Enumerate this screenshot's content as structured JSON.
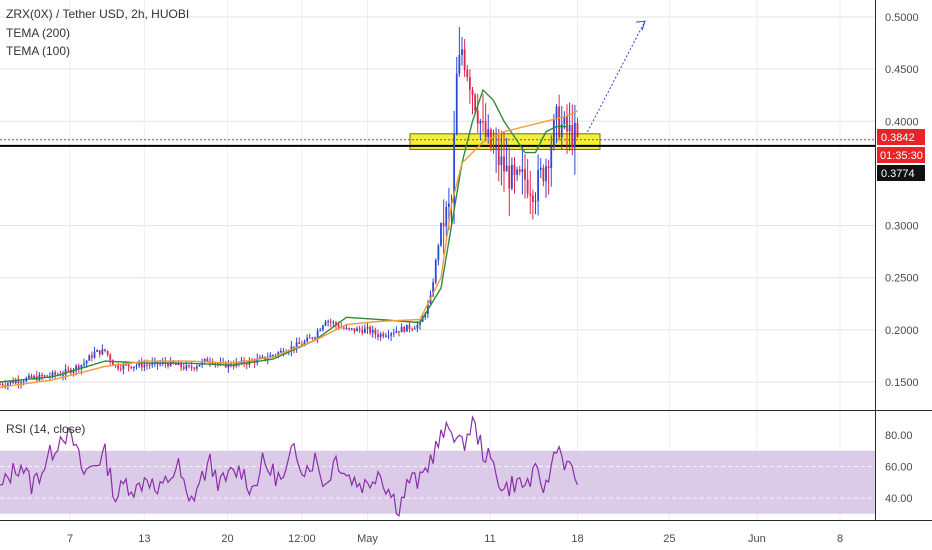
{
  "legend": {
    "title": "ZRX(0X) / Tether USD, 2h, HUOBI",
    "ind1": "TEMA (200)",
    "ind2": "TEMA (100)",
    "rsi": "RSI (14, close)"
  },
  "badges": {
    "last_price": "0.3842",
    "countdown": "01:35:30",
    "level": "0.3774"
  },
  "colors": {
    "up": "#2a49d6",
    "down": "#e0244f",
    "tema200": "#2e8b3a",
    "tema100": "#f39a3b",
    "rsi": "#8a2fa8",
    "rsi_band": "#d7c4e6",
    "zone": "#f4ef3c",
    "red_badge": "#e8242b",
    "black_badge": "#111111",
    "projection": "#2a49d6"
  },
  "chart_data": [
    {
      "type": "candlestick",
      "title": "ZRX(0X) / Tether USD, 2h, HUOBI",
      "ylim": [
        0.14,
        0.5
      ],
      "y_ticks": [
        "0.5000",
        "0.4500",
        "0.4000",
        "0.3000",
        "0.2500",
        "0.2000",
        "0.1500"
      ],
      "x_ticks": [
        "7",
        "13",
        "20",
        "12:00",
        "May",
        "11",
        "18",
        "25",
        "Jun",
        "8"
      ],
      "price_path": [
        [
          0,
          0.148
        ],
        [
          2,
          0.152
        ],
        [
          4,
          0.155
        ],
        [
          6,
          0.158
        ],
        [
          8,
          0.168
        ],
        [
          9,
          0.178
        ],
        [
          10,
          0.18
        ],
        [
          11,
          0.165
        ],
        [
          13,
          0.166
        ],
        [
          16,
          0.168
        ],
        [
          18,
          0.163
        ],
        [
          20,
          0.172
        ],
        [
          21,
          0.166
        ],
        [
          23,
          0.168
        ],
        [
          25,
          0.172
        ],
        [
          27,
          0.18
        ],
        [
          29,
          0.188
        ],
        [
          30,
          0.195
        ],
        [
          31,
          0.21
        ],
        [
          32,
          0.205
        ],
        [
          33,
          0.2
        ],
        [
          35,
          0.2
        ],
        [
          36,
          0.195
        ],
        [
          38,
          0.2
        ],
        [
          40,
          0.205
        ],
        [
          41,
          0.23
        ],
        [
          42,
          0.3
        ],
        [
          43,
          0.32
        ],
        [
          43.5,
          0.44
        ],
        [
          44,
          0.47
        ],
        [
          45,
          0.43
        ],
        [
          46,
          0.39
        ],
        [
          47,
          0.37
        ],
        [
          48,
          0.355
        ],
        [
          49,
          0.34
        ],
        [
          50,
          0.345
        ],
        [
          51,
          0.335
        ],
        [
          52,
          0.36
        ],
        [
          53,
          0.4
        ],
        [
          54,
          0.39
        ],
        [
          55,
          0.384
        ]
      ],
      "tema200": [
        [
          0,
          0.15
        ],
        [
          5,
          0.155
        ],
        [
          10,
          0.17
        ],
        [
          14,
          0.168
        ],
        [
          18,
          0.168
        ],
        [
          22,
          0.166
        ],
        [
          26,
          0.172
        ],
        [
          30,
          0.19
        ],
        [
          33,
          0.212
        ],
        [
          36,
          0.21
        ],
        [
          40,
          0.207
        ],
        [
          42,
          0.24
        ],
        [
          43,
          0.3
        ],
        [
          44,
          0.36
        ],
        [
          45,
          0.4
        ],
        [
          46,
          0.43
        ],
        [
          47,
          0.42
        ],
        [
          48,
          0.4
        ],
        [
          49,
          0.385
        ],
        [
          50,
          0.37
        ],
        [
          51,
          0.37
        ],
        [
          52,
          0.39
        ],
        [
          53,
          0.395
        ],
        [
          54,
          0.395
        ]
      ],
      "tema100": [
        [
          0,
          0.145
        ],
        [
          5,
          0.152
        ],
        [
          10,
          0.165
        ],
        [
          14,
          0.17
        ],
        [
          18,
          0.17
        ],
        [
          22,
          0.168
        ],
        [
          26,
          0.174
        ],
        [
          30,
          0.19
        ],
        [
          33,
          0.205
        ],
        [
          36,
          0.208
        ],
        [
          40,
          0.21
        ],
        [
          42,
          0.25
        ],
        [
          43,
          0.32
        ],
        [
          44,
          0.36
        ],
        [
          46,
          0.38
        ],
        [
          48,
          0.39
        ],
        [
          50,
          0.395
        ],
        [
          52,
          0.4
        ],
        [
          54,
          0.405
        ],
        [
          55,
          0.41
        ]
      ],
      "support_zone": [
        0.373,
        0.388
      ],
      "projection_target": 0.496
    },
    {
      "type": "line",
      "title": "RSI (14, close)",
      "ylim": [
        25,
        95
      ],
      "y_ticks": [
        "80.00",
        "60.00",
        "40.00"
      ],
      "band": [
        30,
        70
      ],
      "series": [
        [
          0,
          45
        ],
        [
          1,
          55
        ],
        [
          2,
          62
        ],
        [
          3,
          48
        ],
        [
          4,
          58
        ],
        [
          5,
          70
        ],
        [
          6,
          82
        ],
        [
          7,
          75
        ],
        [
          8,
          55
        ],
        [
          9,
          62
        ],
        [
          10,
          68
        ],
        [
          11,
          40
        ],
        [
          12,
          50
        ],
        [
          13,
          45
        ],
        [
          14,
          55
        ],
        [
          15,
          42
        ],
        [
          16,
          52
        ],
        [
          17,
          60
        ],
        [
          18,
          35
        ],
        [
          19,
          50
        ],
        [
          20,
          62
        ],
        [
          21,
          48
        ],
        [
          22,
          55
        ],
        [
          23,
          58
        ],
        [
          24,
          45
        ],
        [
          25,
          62
        ],
        [
          26,
          56
        ],
        [
          27,
          50
        ],
        [
          28,
          72
        ],
        [
          29,
          58
        ],
        [
          30,
          65
        ],
        [
          31,
          48
        ],
        [
          32,
          66
        ],
        [
          33,
          55
        ],
        [
          34,
          50
        ],
        [
          35,
          48
        ],
        [
          36,
          58
        ],
        [
          37,
          45
        ],
        [
          38,
          34
        ],
        [
          39,
          52
        ],
        [
          40,
          50
        ],
        [
          41,
          65
        ],
        [
          42,
          78
        ],
        [
          43,
          85
        ],
        [
          44,
          72
        ],
        [
          45,
          88
        ],
        [
          46,
          70
        ],
        [
          47,
          60
        ],
        [
          48,
          45
        ],
        [
          49,
          50
        ],
        [
          50,
          48
        ],
        [
          51,
          55
        ],
        [
          52,
          46
        ],
        [
          53,
          75
        ],
        [
          54,
          60
        ],
        [
          55,
          52
        ]
      ]
    }
  ]
}
